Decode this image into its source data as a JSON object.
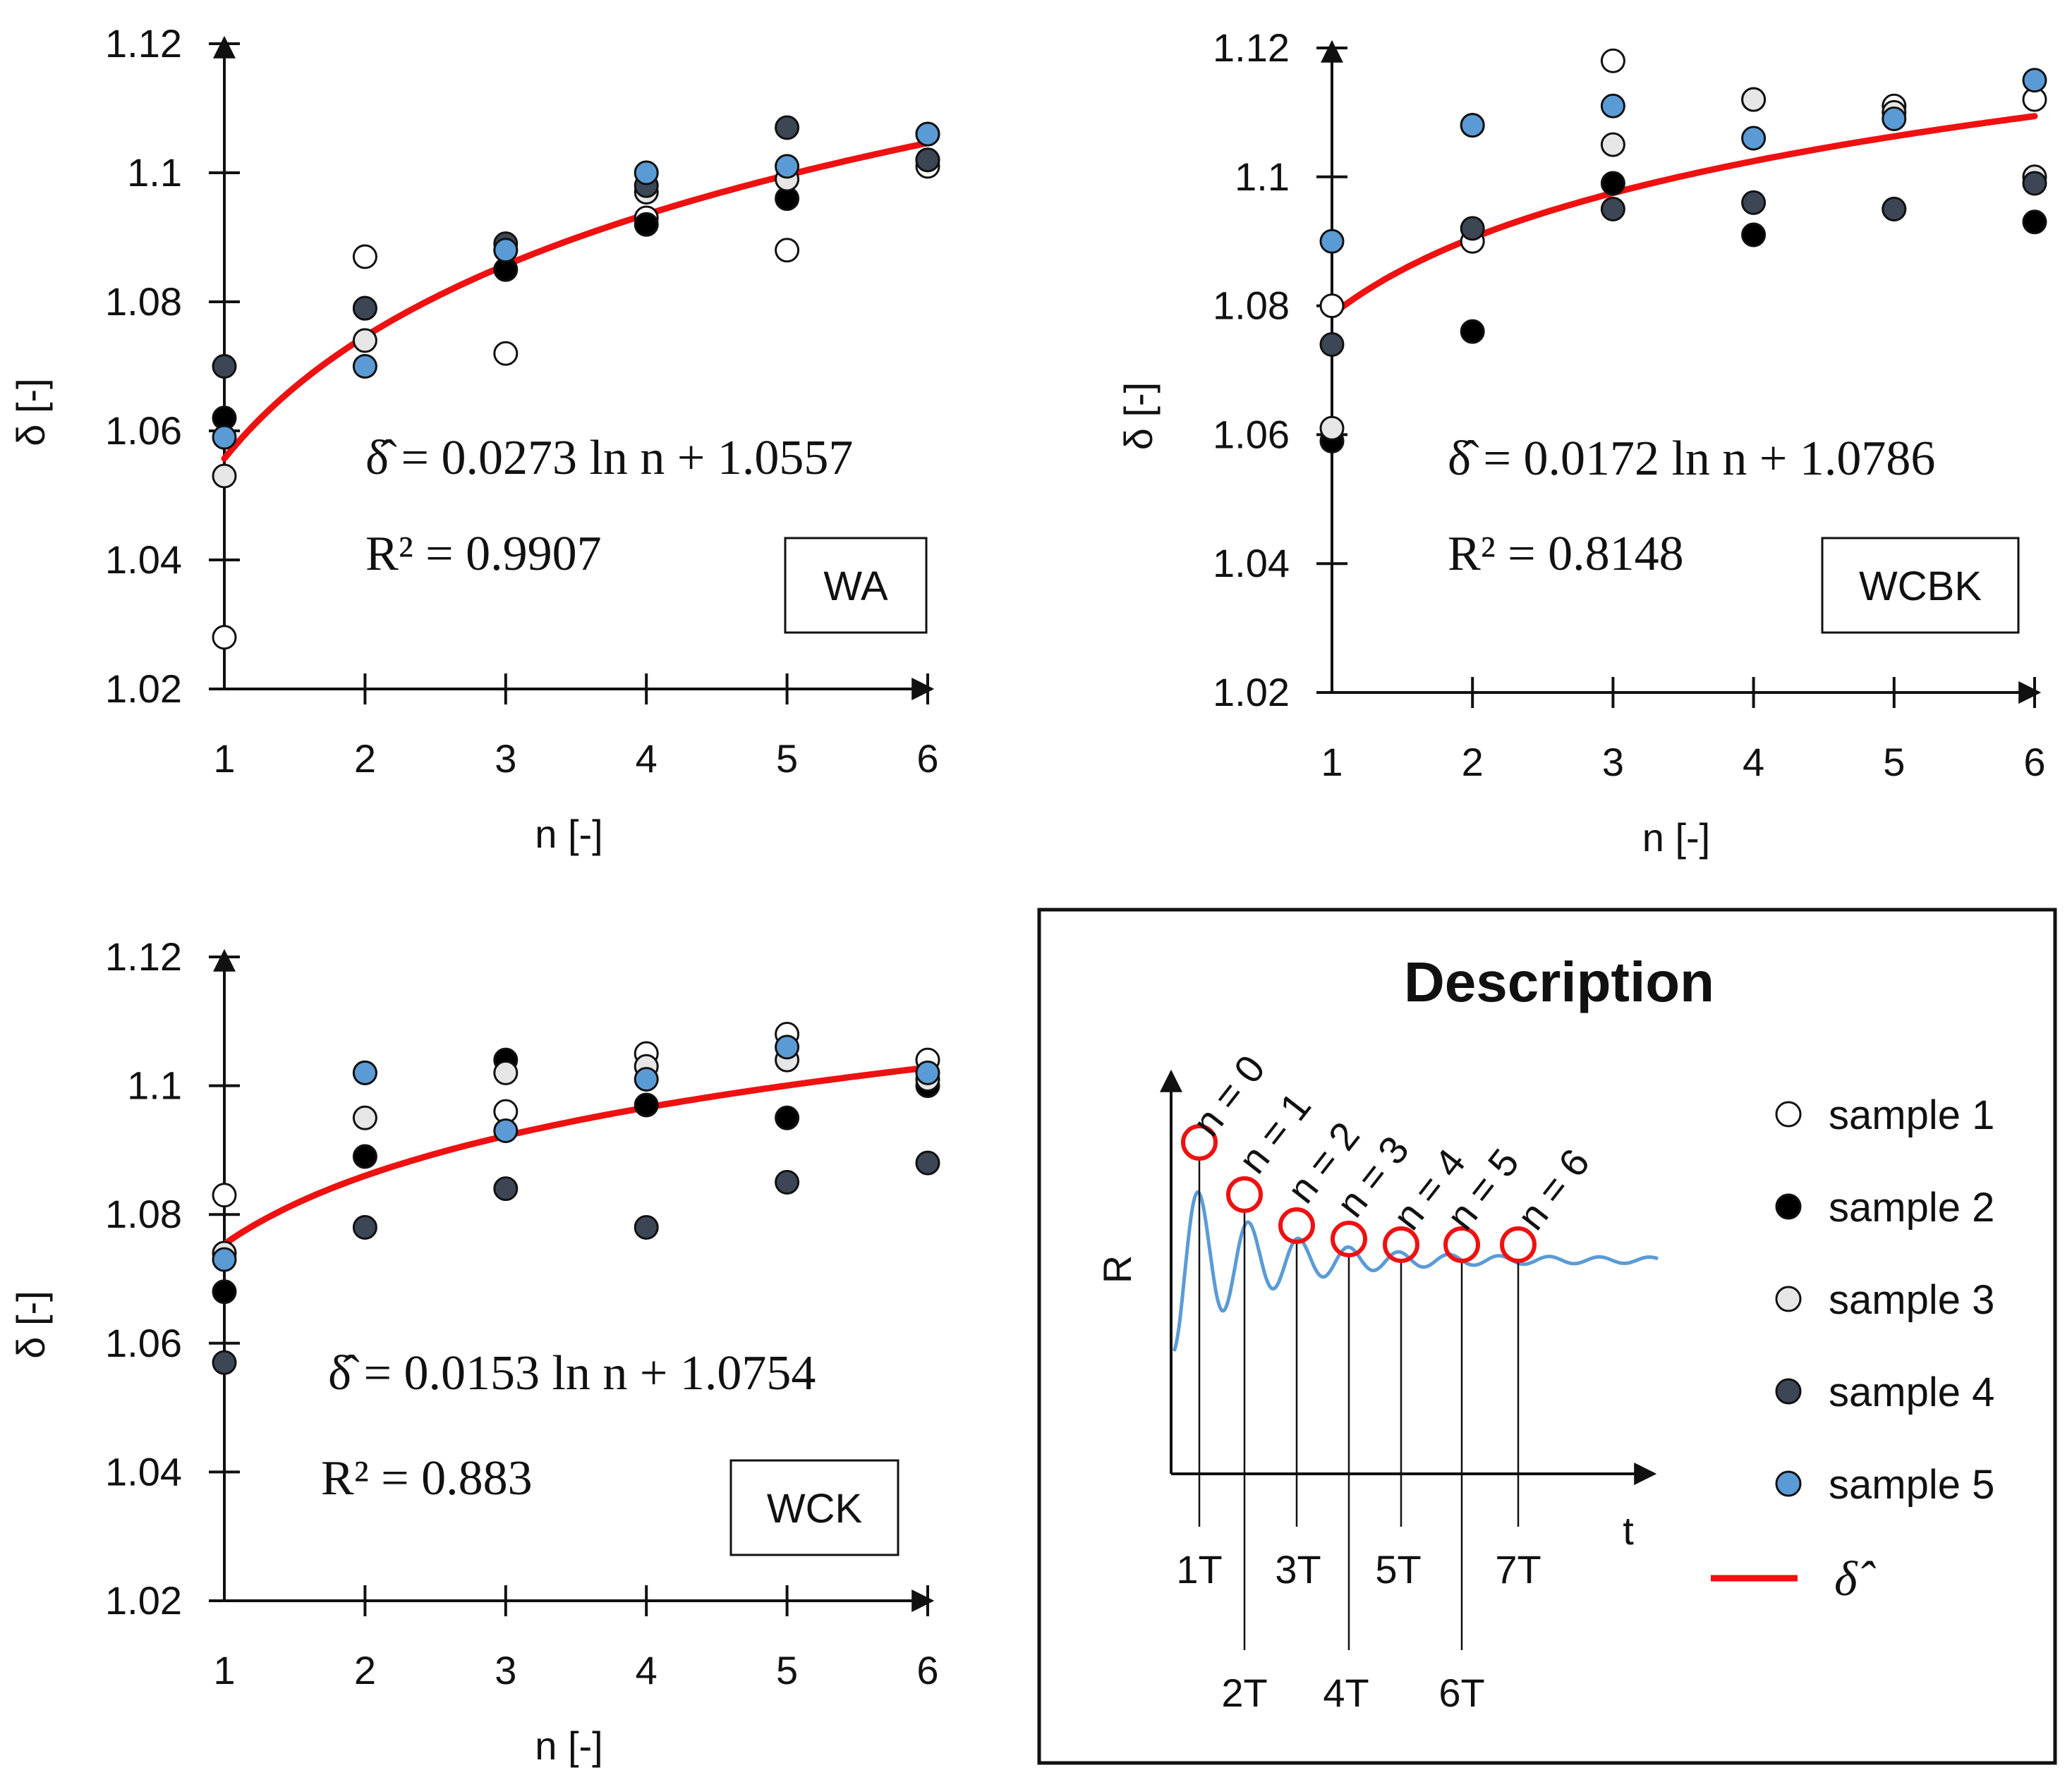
{
  "chart_data": [
    {
      "type": "scatter",
      "panel": "WA",
      "box_label": "WA",
      "xlabel": "n [-]",
      "ylabel": "δ [-]",
      "x_ticks": [
        "1",
        "2",
        "3",
        "4",
        "5",
        "6"
      ],
      "y_ticks": [
        "1.02",
        "1.04",
        "1.06",
        "1.08",
        "1.1",
        "1.12"
      ],
      "xlim": [
        1,
        6
      ],
      "ylim": [
        1.02,
        1.12
      ],
      "equation": "δ̂ = 0.0273 ln n + 1.0557",
      "r2_text": "R² = 0.9907",
      "fit": {
        "a": 0.0273,
        "b": 1.0557
      },
      "series": [
        {
          "name": "sample 1",
          "points": [
            [
              1,
              1.028
            ],
            [
              2,
              1.087
            ],
            [
              3,
              1.072
            ],
            [
              4,
              1.093
            ],
            [
              5,
              1.088
            ],
            [
              6,
              1.101
            ]
          ]
        },
        {
          "name": "sample 2",
          "points": [
            [
              1,
              1.062
            ],
            [
              2,
              1.079
            ],
            [
              3,
              1.085
            ],
            [
              4,
              1.092
            ],
            [
              5,
              1.096
            ],
            [
              6,
              1.102
            ]
          ]
        },
        {
          "name": "sample 3",
          "points": [
            [
              1,
              1.053
            ],
            [
              2,
              1.074
            ],
            [
              3,
              1.088
            ],
            [
              4,
              1.097
            ],
            [
              5,
              1.099
            ],
            [
              6,
              1.106
            ]
          ]
        },
        {
          "name": "sample 4",
          "points": [
            [
              1,
              1.07
            ],
            [
              2,
              1.079
            ],
            [
              3,
              1.089
            ],
            [
              4,
              1.098
            ],
            [
              5,
              1.107
            ],
            [
              6,
              1.102
            ]
          ]
        },
        {
          "name": "sample 5",
          "points": [
            [
              1,
              1.059
            ],
            [
              2,
              1.07
            ],
            [
              3,
              1.088
            ],
            [
              4,
              1.1
            ],
            [
              5,
              1.101
            ],
            [
              6,
              1.106
            ]
          ]
        }
      ]
    },
    {
      "type": "scatter",
      "panel": "WCBK",
      "box_label": "WCBK",
      "xlabel": "n [-]",
      "ylabel": "δ [-]",
      "x_ticks": [
        "1",
        "2",
        "3",
        "4",
        "5",
        "6"
      ],
      "y_ticks": [
        "1.02",
        "1.04",
        "1.06",
        "1.08",
        "1.1",
        "1.12"
      ],
      "xlim": [
        1,
        6
      ],
      "ylim": [
        1.02,
        1.12
      ],
      "equation": "δ̂ = 0.0172 ln n + 1.0786",
      "r2_text": "R² = 0.8148",
      "fit": {
        "a": 0.0172,
        "b": 1.0786
      },
      "series": [
        {
          "name": "sample 1",
          "points": [
            [
              1,
              1.08
            ],
            [
              2,
              1.09
            ],
            [
              3,
              1.118
            ],
            [
              4,
              1.112
            ],
            [
              5,
              1.111
            ],
            [
              6,
              1.112
            ]
          ]
        },
        {
          "name": "sample 2",
          "points": [
            [
              1,
              1.059
            ],
            [
              2,
              1.076
            ],
            [
              3,
              1.099
            ],
            [
              4,
              1.091
            ],
            [
              5,
              1.095
            ],
            [
              6,
              1.093
            ]
          ]
        },
        {
          "name": "sample 3",
          "points": [
            [
              1,
              1.061
            ],
            [
              2,
              1.108
            ],
            [
              3,
              1.105
            ],
            [
              4,
              1.112
            ],
            [
              5,
              1.11
            ],
            [
              6,
              1.1
            ]
          ]
        },
        {
          "name": "sample 4",
          "points": [
            [
              1,
              1.074
            ],
            [
              2,
              1.092
            ],
            [
              3,
              1.095
            ],
            [
              4,
              1.096
            ],
            [
              5,
              1.095
            ],
            [
              6,
              1.099
            ]
          ]
        },
        {
          "name": "sample 5",
          "points": [
            [
              1,
              1.09
            ],
            [
              2,
              1.108
            ],
            [
              3,
              1.111
            ],
            [
              4,
              1.106
            ],
            [
              5,
              1.109
            ],
            [
              6,
              1.115
            ]
          ]
        }
      ]
    },
    {
      "type": "scatter",
      "panel": "WCK",
      "box_label": "WCK",
      "xlabel": "n [-]",
      "ylabel": "δ [-]",
      "x_ticks": [
        "1",
        "2",
        "3",
        "4",
        "5",
        "6"
      ],
      "y_ticks": [
        "1.02",
        "1.04",
        "1.06",
        "1.08",
        "1.1",
        "1.12"
      ],
      "xlim": [
        1,
        6
      ],
      "ylim": [
        1.02,
        1.12
      ],
      "equation": "δ̂ = 0.0153 ln n + 1.0754",
      "r2_text": "R² = 0.883",
      "fit": {
        "a": 0.0153,
        "b": 1.0754
      },
      "series": [
        {
          "name": "sample 1",
          "points": [
            [
              1,
              1.083
            ],
            [
              2,
              1.102
            ],
            [
              3,
              1.096
            ],
            [
              4,
              1.105
            ],
            [
              5,
              1.108
            ],
            [
              6,
              1.104
            ]
          ]
        },
        {
          "name": "sample 2",
          "points": [
            [
              1,
              1.068
            ],
            [
              2,
              1.089
            ],
            [
              3,
              1.104
            ],
            [
              4,
              1.097
            ],
            [
              5,
              1.095
            ],
            [
              6,
              1.1
            ]
          ]
        },
        {
          "name": "sample 3",
          "points": [
            [
              1,
              1.074
            ],
            [
              2,
              1.095
            ],
            [
              3,
              1.102
            ],
            [
              4,
              1.103
            ],
            [
              5,
              1.104
            ],
            [
              6,
              1.101
            ]
          ]
        },
        {
          "name": "sample 4",
          "points": [
            [
              1,
              1.057
            ],
            [
              2,
              1.078
            ],
            [
              3,
              1.084
            ],
            [
              4,
              1.078
            ],
            [
              5,
              1.085
            ],
            [
              6,
              1.088
            ]
          ]
        },
        {
          "name": "sample 5",
          "points": [
            [
              1,
              1.073
            ],
            [
              2,
              1.102
            ],
            [
              3,
              1.093
            ],
            [
              4,
              1.101
            ],
            [
              5,
              1.106
            ],
            [
              6,
              1.102
            ]
          ]
        }
      ]
    }
  ],
  "description": {
    "title": "Description",
    "y_axis_label": "R",
    "x_axis_label": "t",
    "n_labels": [
      "n = 0",
      "n = 1",
      "n = 2",
      "n = 3",
      "n = 4",
      "n = 5",
      "n = 6"
    ],
    "period_labels_top": [
      "1T",
      "3T",
      "5T",
      "7T"
    ],
    "period_labels_bottom": [
      "2T",
      "4T",
      "6T"
    ]
  },
  "legend": {
    "items": [
      {
        "label": "sample 1",
        "color": "#ffffff"
      },
      {
        "label": "sample 2",
        "color": "#000000"
      },
      {
        "label": "sample 3",
        "color": "#e6e6e6"
      },
      {
        "label": "sample 4",
        "color": "#3d4654"
      },
      {
        "label": "sample 5",
        "color": "#5b9bd5"
      }
    ],
    "fit_label": "δ̂",
    "fit_color": "#ee1111"
  },
  "colors": {
    "fit_line": "#ee1111",
    "wave": "#5b9bd5",
    "axis": "#111111"
  }
}
